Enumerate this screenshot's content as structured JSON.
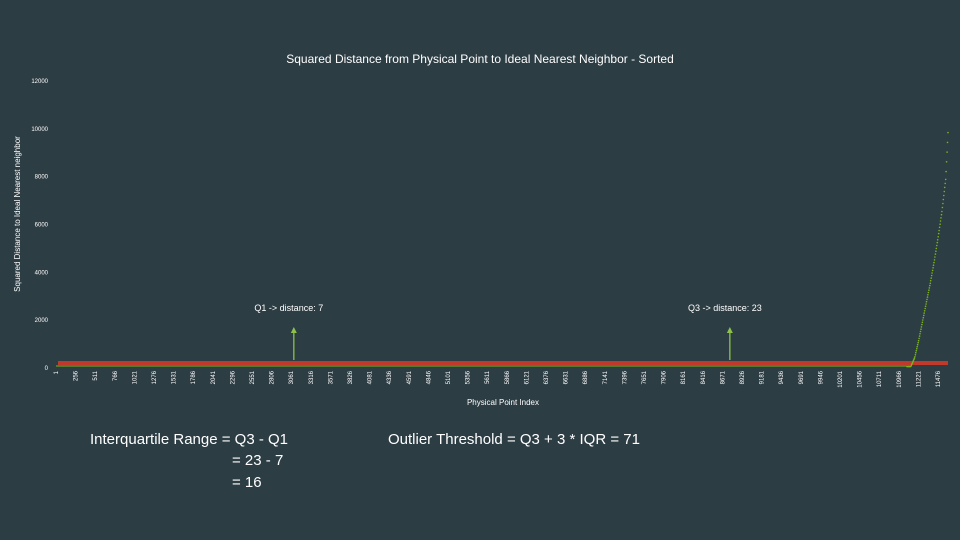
{
  "chart_data": {
    "type": "scatter",
    "title": "Squared Distance from Physical Point to Ideal Nearest Neighbor - Sorted",
    "xlabel": "Physical Point Index",
    "ylabel": "Squared Distance to Ideal Nearest neighbor",
    "ylim": [
      0,
      12000
    ],
    "xlim": [
      1,
      11478
    ],
    "y_ticks": [
      "0",
      "2000",
      "4000",
      "6000",
      "8000",
      "10000",
      "12000"
    ],
    "x_ticks": [
      "1",
      "256",
      "511",
      "766",
      "1021",
      "1276",
      "1531",
      "1786",
      "2041",
      "2296",
      "2551",
      "2806",
      "3061",
      "3316",
      "3571",
      "3826",
      "4081",
      "4336",
      "4591",
      "4846",
      "5101",
      "5356",
      "5611",
      "5866",
      "6121",
      "6376",
      "6631",
      "6886",
      "7141",
      "7396",
      "7651",
      "7906",
      "8161",
      "8416",
      "8671",
      "8926",
      "9181",
      "9436",
      "9691",
      "9946",
      "10201",
      "10456",
      "10711",
      "10966",
      "11221",
      "11476"
    ],
    "grid": false,
    "series": [
      {
        "x": [
          1,
          11000,
          11050,
          11100,
          11150,
          11200,
          11250,
          11300,
          11350,
          11400,
          11450,
          11478
        ],
        "y": [
          0,
          20,
          400,
          1100,
          1900,
          2700,
          3500,
          4400,
          5400,
          6500,
          7900,
          9800
        ],
        "color": "#7ab51d"
      }
    ],
    "annotations": [
      {
        "text": "Q1 -> distance: 7",
        "x": 3061,
        "y": 7
      },
      {
        "text": "Q3 -> distance: 23",
        "x": 8671,
        "y": 23
      }
    ],
    "threshold_line": {
      "y": 71,
      "color": "#c0392b"
    },
    "arrow_color": "#8bc34a"
  },
  "notes": {
    "iqr_line1": "Interquartile Range = Q3 - Q1",
    "iqr_line2": "= 23 - 7",
    "iqr_line3": "= 16",
    "outlier": "Outlier Threshold = Q3 + 3 * IQR = 71"
  }
}
